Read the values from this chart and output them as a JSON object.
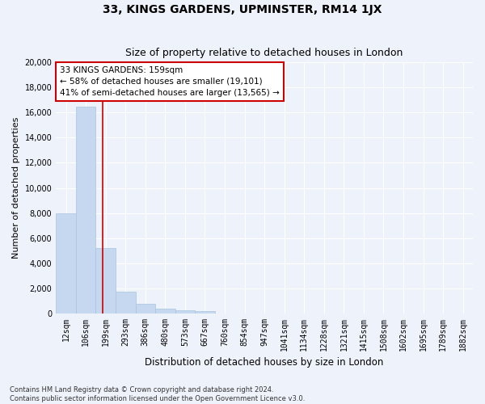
{
  "title": "33, KINGS GARDENS, UPMINSTER, RM14 1JX",
  "subtitle": "Size of property relative to detached houses in London",
  "xlabel": "Distribution of detached houses by size in London",
  "ylabel": "Number of detached properties",
  "categories": [
    "12sqm",
    "106sqm",
    "199sqm",
    "293sqm",
    "386sqm",
    "480sqm",
    "573sqm",
    "667sqm",
    "760sqm",
    "854sqm",
    "947sqm",
    "1041sqm",
    "1134sqm",
    "1228sqm",
    "1321sqm",
    "1415sqm",
    "1508sqm",
    "1602sqm",
    "1695sqm",
    "1789sqm",
    "1882sqm"
  ],
  "values": [
    8000,
    16500,
    5200,
    1750,
    750,
    350,
    250,
    200,
    0,
    0,
    0,
    0,
    0,
    0,
    0,
    0,
    0,
    0,
    0,
    0,
    0
  ],
  "bar_color": "#c5d8f0",
  "bar_edge_color": "#a8c4e0",
  "ylim": [
    0,
    20000
  ],
  "yticks": [
    0,
    2000,
    4000,
    6000,
    8000,
    10000,
    12000,
    14000,
    16000,
    18000,
    20000
  ],
  "red_line_x": 1.85,
  "annotation_line1": "33 KINGS GARDENS: 159sqm",
  "annotation_line2": "← 58% of detached houses are smaller (19,101)",
  "annotation_line3": "41% of semi-detached houses are larger (13,565) →",
  "annotation_box_color": "#cc0000",
  "background_color": "#eef2fb",
  "grid_color": "#ffffff",
  "footnote": "Contains HM Land Registry data © Crown copyright and database right 2024.\nContains public sector information licensed under the Open Government Licence v3.0."
}
